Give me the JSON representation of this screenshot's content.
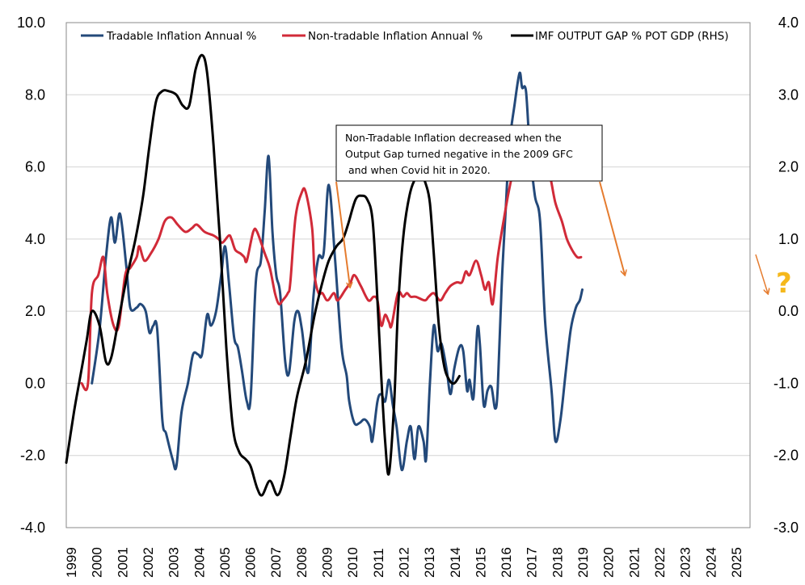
{
  "chart_data": {
    "type": "line",
    "title": "",
    "xlabel": "",
    "ylabel_left": "",
    "ylabel_right": "",
    "xlim": [
      1999,
      2025.7
    ],
    "ylim_left": [
      -4.0,
      10.0
    ],
    "ylim_right": [
      -3.0,
      4.0
    ],
    "grid": true,
    "legend_position": "top",
    "x_tick_labels": [
      "1999",
      "2000",
      "2001",
      "2002",
      "2003",
      "2004",
      "2005",
      "2006",
      "2007",
      "2008",
      "2009",
      "2010",
      "2011",
      "2012",
      "2013",
      "2014",
      "2015",
      "2016",
      "2017",
      "2018",
      "2019",
      "2020",
      "2021",
      "2022",
      "2023",
      "2024",
      "2025"
    ],
    "y_left_tick_labels": [
      "10.0",
      "8.0",
      "6.0",
      "4.0",
      "2.0",
      "0.0",
      "-2.0",
      "-4.0"
    ],
    "y_right_tick_labels": [
      "4.0",
      "3.0",
      "2.0",
      "1.0",
      "0.0",
      "-1.0",
      "-2.0",
      "-3.0"
    ],
    "series": [
      {
        "name": "Tradable Inflation Annual %",
        "axis": "left",
        "color": "#23497a",
        "points": [
          [
            2000.0,
            0.0
          ],
          [
            2000.3,
            1.5
          ],
          [
            2000.55,
            3.5
          ],
          [
            2000.75,
            4.6
          ],
          [
            2000.9,
            3.9
          ],
          [
            2001.1,
            4.7
          ],
          [
            2001.35,
            3.2
          ],
          [
            2001.5,
            2.1
          ],
          [
            2001.75,
            2.1
          ],
          [
            2001.9,
            2.2
          ],
          [
            2002.1,
            2.0
          ],
          [
            2002.25,
            1.4
          ],
          [
            2002.4,
            1.6
          ],
          [
            2002.55,
            1.5
          ],
          [
            2002.75,
            -1.0
          ],
          [
            2002.9,
            -1.4
          ],
          [
            2003.15,
            -2.1
          ],
          [
            2003.3,
            -2.3
          ],
          [
            2003.5,
            -0.8
          ],
          [
            2003.75,
            0.0
          ],
          [
            2003.95,
            0.8
          ],
          [
            2004.15,
            0.8
          ],
          [
            2004.3,
            0.8
          ],
          [
            2004.5,
            1.9
          ],
          [
            2004.65,
            1.6
          ],
          [
            2004.85,
            2.0
          ],
          [
            2005.05,
            3.0
          ],
          [
            2005.2,
            3.8
          ],
          [
            2005.35,
            2.8
          ],
          [
            2005.55,
            1.3
          ],
          [
            2005.7,
            1.0
          ],
          [
            2005.85,
            0.4
          ],
          [
            2006.05,
            -0.5
          ],
          [
            2006.2,
            -0.4
          ],
          [
            2006.4,
            2.8
          ],
          [
            2006.6,
            3.4
          ],
          [
            2006.75,
            4.8
          ],
          [
            2006.9,
            6.3
          ],
          [
            2007.05,
            4.2
          ],
          [
            2007.2,
            3.0
          ],
          [
            2007.35,
            2.5
          ],
          [
            2007.55,
            0.6
          ],
          [
            2007.7,
            0.3
          ],
          [
            2007.9,
            1.7
          ],
          [
            2008.05,
            2.0
          ],
          [
            2008.2,
            1.5
          ],
          [
            2008.45,
            0.3
          ],
          [
            2008.65,
            2.4
          ],
          [
            2008.85,
            3.5
          ],
          [
            2009.05,
            3.6
          ],
          [
            2009.25,
            5.5
          ],
          [
            2009.5,
            3.4
          ],
          [
            2009.75,
            1.0
          ],
          [
            2009.95,
            0.2
          ],
          [
            2010.05,
            -0.5
          ],
          [
            2010.25,
            -1.1
          ],
          [
            2010.45,
            -1.1
          ],
          [
            2010.65,
            -1.0
          ],
          [
            2010.85,
            -1.2
          ],
          [
            2010.95,
            -1.6
          ],
          [
            2011.15,
            -0.5
          ],
          [
            2011.3,
            -0.3
          ],
          [
            2011.45,
            -0.5
          ],
          [
            2011.6,
            0.1
          ],
          [
            2011.75,
            -0.6
          ],
          [
            2011.9,
            -1.2
          ],
          [
            2012.1,
            -2.4
          ],
          [
            2012.3,
            -1.6
          ],
          [
            2012.45,
            -1.2
          ],
          [
            2012.6,
            -2.1
          ],
          [
            2012.75,
            -1.2
          ],
          [
            2012.95,
            -1.6
          ],
          [
            2013.05,
            -2.1
          ],
          [
            2013.2,
            0.0
          ],
          [
            2013.35,
            1.6
          ],
          [
            2013.5,
            0.9
          ],
          [
            2013.65,
            1.1
          ],
          [
            2013.85,
            0.4
          ],
          [
            2014.0,
            -0.3
          ],
          [
            2014.15,
            0.4
          ],
          [
            2014.35,
            1.0
          ],
          [
            2014.5,
            0.9
          ],
          [
            2014.65,
            -0.2
          ],
          [
            2014.75,
            0.1
          ],
          [
            2014.9,
            -0.4
          ],
          [
            2015.05,
            1.5
          ],
          [
            2015.15,
            1.1
          ],
          [
            2015.3,
            -0.6
          ],
          [
            2015.45,
            -0.2
          ],
          [
            2015.6,
            -0.1
          ],
          [
            2015.75,
            -0.7
          ],
          [
            2015.85,
            -0.1
          ],
          [
            2016.0,
            2.7
          ],
          [
            2016.15,
            4.7
          ],
          [
            2016.3,
            6.6
          ],
          [
            2016.5,
            7.7
          ],
          [
            2016.7,
            8.6
          ],
          [
            2016.8,
            8.2
          ],
          [
            2016.95,
            8.1
          ],
          [
            2017.1,
            6.5
          ],
          [
            2017.3,
            5.2
          ],
          [
            2017.5,
            4.5
          ],
          [
            2017.7,
            1.7
          ],
          [
            2017.95,
            -0.2
          ],
          [
            2018.1,
            -1.6
          ],
          [
            2018.3,
            -1.0
          ],
          [
            2018.5,
            0.3
          ],
          [
            2018.7,
            1.5
          ],
          [
            2018.9,
            2.1
          ],
          [
            2019.05,
            2.3
          ],
          [
            2019.15,
            2.6
          ]
        ]
      },
      {
        "name": "Non-tradable Inflation Annual %",
        "axis": "left",
        "color": "#d12a38",
        "points": [
          [
            1999.6,
            0.0
          ],
          [
            1999.85,
            0.0
          ],
          [
            2000.0,
            2.5
          ],
          [
            2000.25,
            3.0
          ],
          [
            2000.45,
            3.5
          ],
          [
            2000.6,
            2.5
          ],
          [
            2000.85,
            1.6
          ],
          [
            2001.05,
            1.6
          ],
          [
            2001.3,
            3.0
          ],
          [
            2001.5,
            3.2
          ],
          [
            2001.75,
            3.5
          ],
          [
            2001.85,
            3.8
          ],
          [
            2002.05,
            3.4
          ],
          [
            2002.3,
            3.6
          ],
          [
            2002.6,
            4.0
          ],
          [
            2002.85,
            4.5
          ],
          [
            2003.1,
            4.6
          ],
          [
            2003.35,
            4.4
          ],
          [
            2003.65,
            4.2
          ],
          [
            2003.9,
            4.3
          ],
          [
            2004.1,
            4.4
          ],
          [
            2004.4,
            4.2
          ],
          [
            2004.75,
            4.1
          ],
          [
            2004.95,
            4.0
          ],
          [
            2005.1,
            3.9
          ],
          [
            2005.35,
            4.1
          ],
          [
            2005.45,
            4.0
          ],
          [
            2005.6,
            3.7
          ],
          [
            2005.8,
            3.6
          ],
          [
            2005.95,
            3.5
          ],
          [
            2006.05,
            3.4
          ],
          [
            2006.3,
            4.2
          ],
          [
            2006.45,
            4.2
          ],
          [
            2006.75,
            3.6
          ],
          [
            2006.95,
            3.2
          ],
          [
            2007.15,
            2.5
          ],
          [
            2007.3,
            2.2
          ],
          [
            2007.45,
            2.3
          ],
          [
            2007.65,
            2.5
          ],
          [
            2007.75,
            2.8
          ],
          [
            2007.95,
            4.6
          ],
          [
            2008.2,
            5.3
          ],
          [
            2008.35,
            5.3
          ],
          [
            2008.6,
            4.3
          ],
          [
            2008.7,
            3.0
          ],
          [
            2008.85,
            2.5
          ],
          [
            2009.0,
            2.5
          ],
          [
            2009.2,
            2.3
          ],
          [
            2009.45,
            2.5
          ],
          [
            2009.6,
            2.3
          ],
          [
            2009.9,
            2.6
          ],
          [
            2010.1,
            2.8
          ],
          [
            2010.25,
            3.0
          ],
          [
            2010.5,
            2.7
          ],
          [
            2010.8,
            2.3
          ],
          [
            2011.0,
            2.4
          ],
          [
            2011.15,
            2.3
          ],
          [
            2011.3,
            1.6
          ],
          [
            2011.45,
            1.9
          ],
          [
            2011.6,
            1.7
          ],
          [
            2011.7,
            1.6
          ],
          [
            2011.95,
            2.5
          ],
          [
            2012.15,
            2.4
          ],
          [
            2012.3,
            2.5
          ],
          [
            2012.45,
            2.4
          ],
          [
            2012.65,
            2.4
          ],
          [
            2013.0,
            2.3
          ],
          [
            2013.15,
            2.4
          ],
          [
            2013.35,
            2.5
          ],
          [
            2013.6,
            2.3
          ],
          [
            2013.8,
            2.5
          ],
          [
            2014.0,
            2.7
          ],
          [
            2014.25,
            2.8
          ],
          [
            2014.45,
            2.8
          ],
          [
            2014.6,
            3.1
          ],
          [
            2014.75,
            3.0
          ],
          [
            2015.0,
            3.4
          ],
          [
            2015.2,
            3.0
          ],
          [
            2015.35,
            2.6
          ],
          [
            2015.5,
            2.8
          ],
          [
            2015.65,
            2.2
          ],
          [
            2015.85,
            3.5
          ],
          [
            2016.1,
            4.6
          ],
          [
            2016.3,
            5.4
          ],
          [
            2016.5,
            6.0
          ],
          [
            2016.7,
            6.2
          ],
          [
            2016.85,
            6.5
          ],
          [
            2017.05,
            6.5
          ],
          [
            2017.2,
            6.8
          ],
          [
            2017.4,
            6.4
          ],
          [
            2017.55,
            6.0
          ],
          [
            2017.75,
            5.8
          ],
          [
            2017.9,
            5.7
          ],
          [
            2018.1,
            5.0
          ],
          [
            2018.35,
            4.5
          ],
          [
            2018.55,
            4.0
          ],
          [
            2018.75,
            3.7
          ],
          [
            2018.95,
            3.5
          ],
          [
            2019.1,
            3.5
          ]
        ]
      },
      {
        "name": "IMF OUTPUT GAP % POT GDP (RHS)",
        "axis": "right",
        "color": "#000000",
        "points": [
          [
            1999.0,
            -2.1
          ],
          [
            1999.3,
            -1.4
          ],
          [
            1999.55,
            -0.9
          ],
          [
            1999.8,
            -0.4
          ],
          [
            2000.0,
            0.0
          ],
          [
            2000.3,
            -0.2
          ],
          [
            2000.55,
            -0.7
          ],
          [
            2000.75,
            -0.65
          ],
          [
            2001.0,
            -0.2
          ],
          [
            2001.35,
            0.45
          ],
          [
            2001.7,
            1.0
          ],
          [
            2002.0,
            1.6
          ],
          [
            2002.25,
            2.3
          ],
          [
            2002.5,
            2.9
          ],
          [
            2002.75,
            3.05
          ],
          [
            2003.0,
            3.05
          ],
          [
            2003.3,
            3.0
          ],
          [
            2003.55,
            2.85
          ],
          [
            2003.8,
            2.85
          ],
          [
            2004.05,
            3.35
          ],
          [
            2004.3,
            3.55
          ],
          [
            2004.5,
            3.3
          ],
          [
            2004.75,
            2.3
          ],
          [
            2005.0,
            1.0
          ],
          [
            2005.25,
            -0.5
          ],
          [
            2005.5,
            -1.6
          ],
          [
            2005.75,
            -1.95
          ],
          [
            2006.0,
            -2.05
          ],
          [
            2006.2,
            -2.15
          ],
          [
            2006.45,
            -2.45
          ],
          [
            2006.65,
            -2.55
          ],
          [
            2006.95,
            -2.35
          ],
          [
            2007.25,
            -2.55
          ],
          [
            2007.5,
            -2.3
          ],
          [
            2007.75,
            -1.75
          ],
          [
            2008.0,
            -1.2
          ],
          [
            2008.35,
            -0.7
          ],
          [
            2008.7,
            -0.05
          ],
          [
            2009.0,
            0.4
          ],
          [
            2009.25,
            0.7
          ],
          [
            2009.55,
            0.9
          ],
          [
            2009.8,
            1.0
          ],
          [
            2010.0,
            1.2
          ],
          [
            2010.3,
            1.55
          ],
          [
            2010.55,
            1.6
          ],
          [
            2010.75,
            1.55
          ],
          [
            2010.95,
            1.3
          ],
          [
            2011.1,
            0.5
          ],
          [
            2011.3,
            -0.9
          ],
          [
            2011.45,
            -1.8
          ],
          [
            2011.6,
            -2.25
          ],
          [
            2011.8,
            -1.3
          ],
          [
            2011.95,
            0.0
          ],
          [
            2012.15,
            1.0
          ],
          [
            2012.4,
            1.6
          ],
          [
            2012.65,
            1.85
          ],
          [
            2012.85,
            1.9
          ],
          [
            2013.05,
            1.75
          ],
          [
            2013.2,
            1.5
          ],
          [
            2013.35,
            0.8
          ],
          [
            2013.55,
            -0.2
          ],
          [
            2013.75,
            -0.75
          ],
          [
            2013.95,
            -0.95
          ],
          [
            2014.15,
            -1.0
          ],
          [
            2014.35,
            -0.9
          ]
        ]
      }
    ],
    "annotations": [
      {
        "text_lines": [
          "Non-Tradable Inflation decreased when the",
          "Output Gap turned negative in the 2009 GFC",
          " and when Covid hit in 2020."
        ]
      },
      {
        "text": "?",
        "color": "#f5b81c"
      }
    ]
  },
  "legend": {
    "items": [
      {
        "label": "Tradable Inflation Annual %",
        "color": "#23497a"
      },
      {
        "label": "Non-tradable Inflation Annual %",
        "color": "#d12a38"
      },
      {
        "label": "IMF OUTPUT GAP % POT GDP (RHS)",
        "color": "#000000"
      }
    ]
  },
  "annotation_box": {
    "line1": "Non-Tradable Inflation decreased when the",
    "line2": "Output Gap turned negative in the 2009 GFC",
    "line3": " and when Covid hit in 2020."
  },
  "arrow_color": "#e57c2f",
  "question_mark": "?"
}
